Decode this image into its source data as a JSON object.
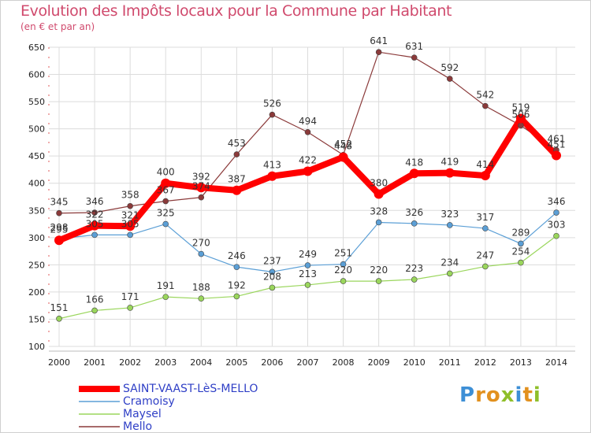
{
  "header": {
    "title": "Evolution des Impôts locaux pour la Commune par Habitant",
    "subtitle": "(en € et par an)"
  },
  "logo": {
    "text": "Proxiti"
  },
  "chart_data": {
    "type": "line",
    "title": "Evolution des Impôts locaux pour la Commune par Habitant",
    "subtitle": "(en € et par an)",
    "x": [
      "2000",
      "2001",
      "2002",
      "2003",
      "2004",
      "2005",
      "2006",
      "2007",
      "2008",
      "2009",
      "2010",
      "2011",
      "2012",
      "2013",
      "2014"
    ],
    "ylim": [
      100,
      650
    ],
    "yticks": [
      100,
      150,
      200,
      250,
      300,
      350,
      400,
      450,
      500,
      550,
      600,
      650
    ],
    "grid": true,
    "legend_position": "bottom-left",
    "series": [
      {
        "name": "Mello",
        "color": "#8b3a3a",
        "values": [
          345,
          346,
          358,
          367,
          374,
          453,
          526,
          494,
          452,
          641,
          631,
          592,
          542,
          506,
          461
        ],
        "labels": [
          "345",
          "346",
          "358",
          "367",
          "374",
          "453",
          "526",
          "494",
          "452",
          "641",
          "631",
          "592",
          "542",
          "506",
          "461"
        ]
      },
      {
        "name": "Maysel",
        "color": "#9ad65c",
        "values": [
          151,
          166,
          171,
          191,
          188,
          192,
          208,
          213,
          220,
          220,
          223,
          234,
          247,
          254,
          303
        ],
        "labels": [
          "151",
          "166",
          "171",
          "191",
          "188",
          "192",
          "208",
          "213",
          "220",
          "220",
          "223",
          "234",
          "247",
          "254",
          "303"
        ]
      },
      {
        "name": "Cramoisy",
        "color": "#5b9fd6",
        "values": [
          298,
          305,
          305,
          325,
          270,
          246,
          237,
          249,
          251,
          328,
          326,
          323,
          317,
          289,
          346
        ],
        "labels": [
          "298",
          "305",
          "305",
          "325",
          "270",
          "246",
          "237",
          "249",
          "251",
          "328",
          "326",
          "323",
          "317",
          "289",
          "346"
        ]
      },
      {
        "name": "SAINT-VAAST-LèS-MELLO",
        "color": "#ff0000",
        "values": [
          295,
          322,
          321,
          400,
          392,
          387,
          413,
          422,
          448,
          380,
          418,
          419,
          414,
          519,
          451
        ],
        "labels": [
          "295",
          "322",
          "321",
          "400",
          "392",
          "387",
          "413",
          "422",
          "448",
          "380",
          "418",
          "419",
          "414",
          "519",
          "451"
        ]
      }
    ],
    "legend": [
      "SAINT-VAAST-LèS-MELLO",
      "Cramoisy",
      "Maysel",
      "Mello"
    ]
  }
}
